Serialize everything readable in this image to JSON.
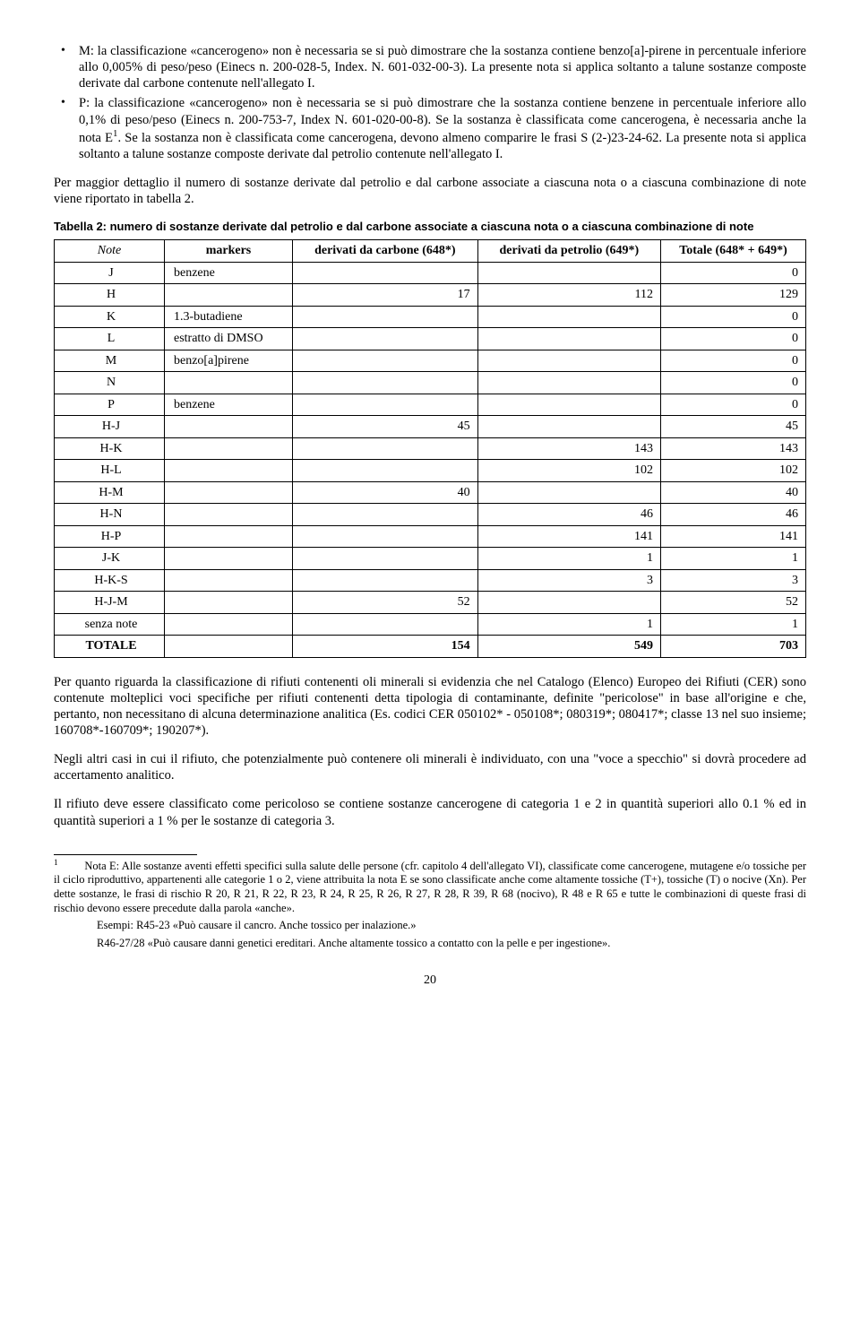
{
  "bullets": {
    "m": "M: la classificazione «cancerogeno» non è necessaria se si può dimostrare che la sostanza contiene benzo[a]-pirene in percentuale inferiore allo 0,005% di peso/peso (Einecs n. 200-028-5, Index. N. 601-032-00-3). La presente nota si applica soltanto a talune sostanze composte derivate dal carbone contenute nell'allegato I.",
    "p1": "P: la classificazione «cancerogeno» non è necessaria se si può dimostrare che la sostanza contiene benzene in percentuale inferiore allo 0,1% di peso/peso (Einecs n. 200-753-7, Index N. 601-020-00-8). Se la sostanza è classificata come cancerogena, è necessaria anche la nota E",
    "p2": ". Se la sostanza non è classificata come cancerogena, devono almeno comparire le frasi S (2-)23-24-62. La presente nota si applica soltanto a talune sostanze composte derivate dal petrolio contenute nell'allegato I."
  },
  "sup1": "1",
  "para1": "Per maggior dettaglio il numero di sostanze derivate dal petrolio e dal carbone associate a ciascuna nota o a ciascuna combinazione di note viene riportato in tabella 2.",
  "table_caption": "Tabella 2: numero di sostanze derivate dal petrolio e dal carbone associate a ciascuna nota o a ciascuna combinazione di note",
  "table": {
    "headers": {
      "note": "Note",
      "markers": "markers",
      "carbone": "derivati da carbone (648*)",
      "petrolio": "derivati da petrolio (649*)",
      "totale": "Totale (648* + 649*)"
    },
    "rows": [
      {
        "note": "J",
        "markers": "benzene",
        "c": "",
        "p": "",
        "t": "0"
      },
      {
        "note": "H",
        "markers": "",
        "c": "17",
        "p": "112",
        "t": "129"
      },
      {
        "note": "K",
        "markers": "1.3-butadiene",
        "c": "",
        "p": "",
        "t": "0"
      },
      {
        "note": "L",
        "markers": "estratto di DMSO",
        "c": "",
        "p": "",
        "t": "0"
      },
      {
        "note": "M",
        "markers": "benzo[a]pirene",
        "c": "",
        "p": "",
        "t": "0"
      },
      {
        "note": "N",
        "markers": "",
        "c": "",
        "p": "",
        "t": "0"
      },
      {
        "note": "P",
        "markers": "benzene",
        "c": "",
        "p": "",
        "t": "0"
      },
      {
        "note": "H-J",
        "markers": "",
        "c": "45",
        "p": "",
        "t": "45"
      },
      {
        "note": "H-K",
        "markers": "",
        "c": "",
        "p": "143",
        "t": "143"
      },
      {
        "note": "H-L",
        "markers": "",
        "c": "",
        "p": "102",
        "t": "102"
      },
      {
        "note": "H-M",
        "markers": "",
        "c": "40",
        "p": "",
        "t": "40"
      },
      {
        "note": "H-N",
        "markers": "",
        "c": "",
        "p": "46",
        "t": "46"
      },
      {
        "note": "H-P",
        "markers": "",
        "c": "",
        "p": "141",
        "t": "141"
      },
      {
        "note": "J-K",
        "markers": "",
        "c": "",
        "p": "1",
        "t": "1"
      },
      {
        "note": "H-K-S",
        "markers": "",
        "c": "",
        "p": "3",
        "t": "3"
      },
      {
        "note": "H-J-M",
        "markers": "",
        "c": "52",
        "p": "",
        "t": "52"
      },
      {
        "note": "senza note",
        "markers": "",
        "c": "",
        "p": "1",
        "t": "1"
      },
      {
        "note": "TOTALE",
        "markers": "",
        "c": "154",
        "p": "549",
        "t": "703",
        "bold": true
      }
    ]
  },
  "para2": "Per quanto riguarda la classificazione di rifiuti contenenti oli minerali si evidenzia che nel Catalogo (Elenco) Europeo dei Rifiuti (CER) sono contenute molteplici voci specifiche per rifiuti contenenti detta tipologia di contaminante, definite \"pericolose\" in base all'origine e che, pertanto, non necessitano di alcuna determinazione analitica (Es. codici CER 050102* - 050108*; 080319*; 080417*; classe 13 nel suo insieme; 160708*-160709*; 190207*).",
  "para3": "Negli altri casi in cui il rifiuto, che potenzialmente può contenere oli minerali è individuato, con una \"voce a specchio\" si dovrà procedere ad accertamento analitico.",
  "para4": "Il rifiuto deve essere classificato come pericoloso se contiene sostanze cancerogene di categoria 1 e 2 in quantità superiori allo 0.1 % ed in quantità superiori a 1 % per le sostanze di categoria 3.",
  "footnote": {
    "num": "1",
    "text1": "Nota E: Alle sostanze aventi effetti specifici sulla salute delle persone (cfr. capitolo 4 dell'allegato VI), classificate come cancerogene, mutagene e/o tossiche per il ciclo riproduttivo, appartenenti alle categorie 1 o 2, viene attribuita la nota E se sono classificate anche come altamente tossiche (T+), tossiche (T) o nocive (Xn). Per dette sostanze, le frasi di rischio R 20, R 21, R 22, R 23, R 24, R 25, R 26, R 27, R 28, R 39, R 68 (nocivo), R 48 e R 65 e tutte le combinazioni di queste frasi di rischio devono essere precedute dalla parola «anche».",
    "ex1": "Esempi: R45-23 «Può causare il cancro. Anche tossico per inalazione.»",
    "ex2": "R46-27/28 «Può causare danni genetici ereditari. Anche altamente tossico a contatto con la pelle e per ingestione»."
  },
  "page_number": "20"
}
